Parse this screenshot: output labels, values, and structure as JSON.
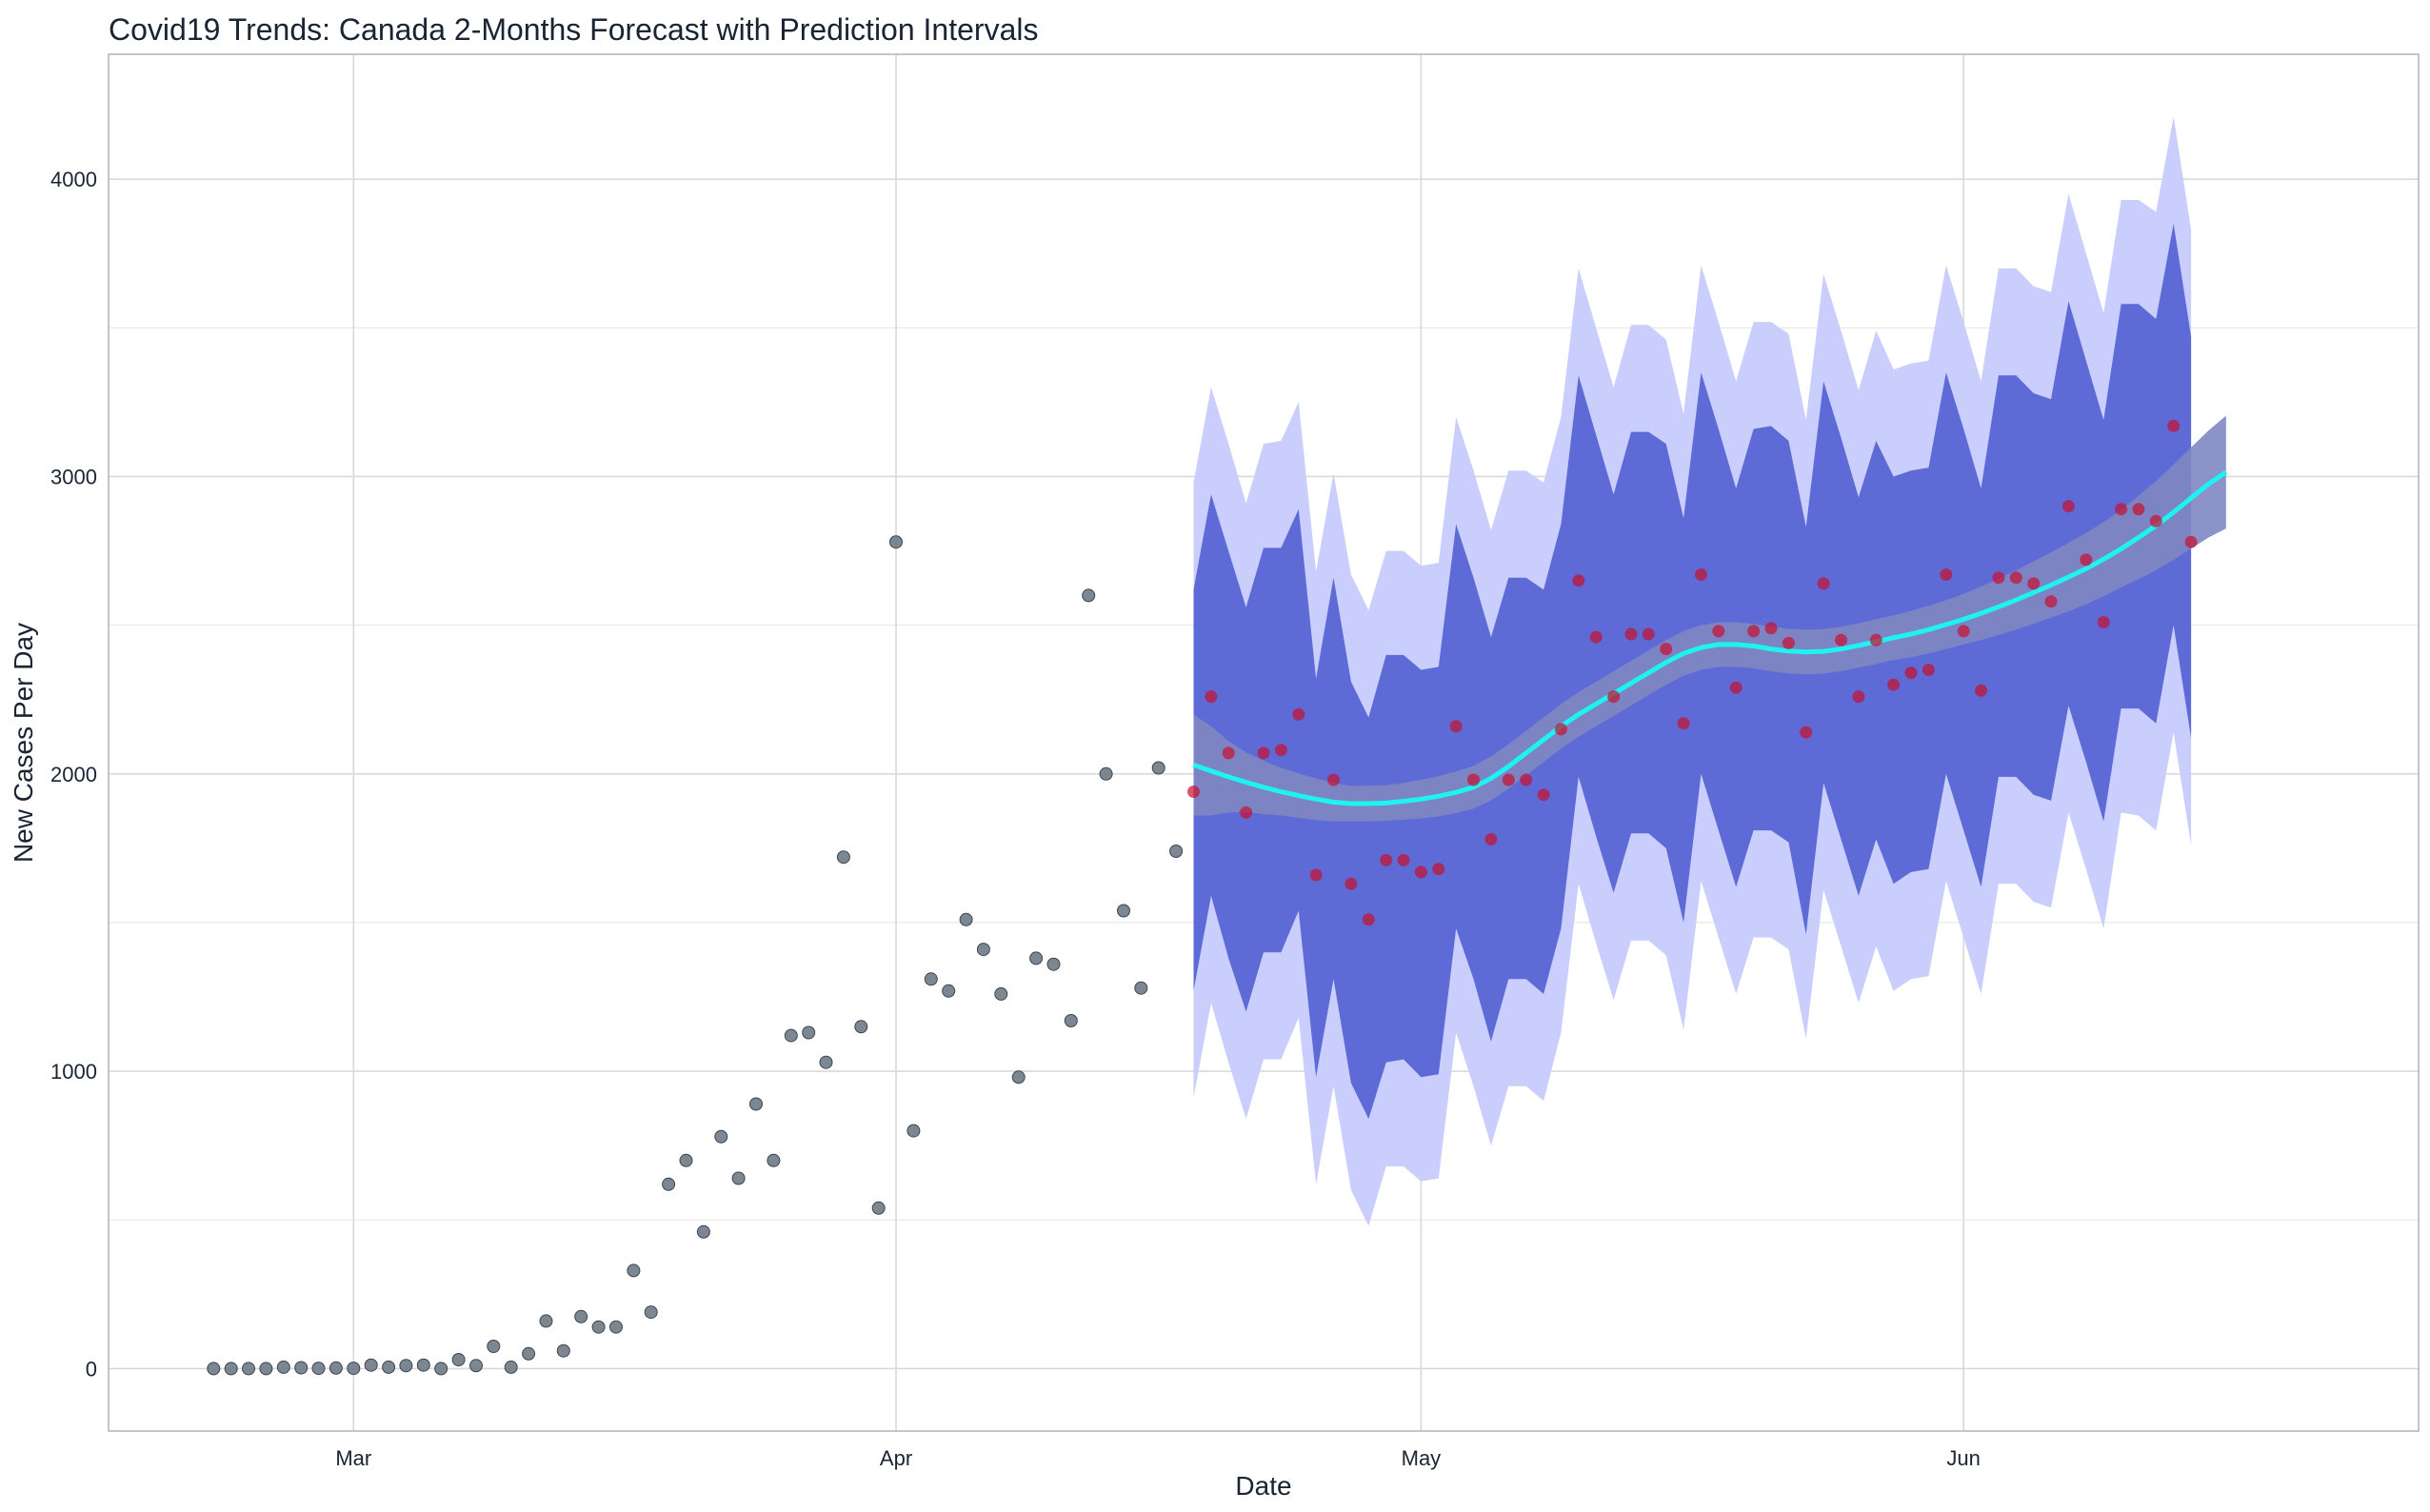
{
  "chart_data": {
    "type": "scatter",
    "title": "Covid19 Trends: Canada 2-Months Forecast with Prediction Intervals",
    "xlabel": "Date",
    "ylabel": "New Cases Per Day",
    "x_start_date": "2020-02-22",
    "xlim": [
      "2020-02-16",
      "2020-06-27"
    ],
    "ylim": [
      -210,
      4420
    ],
    "x_ticks": [
      {
        "date": "2020-03-01",
        "label": "Mar"
      },
      {
        "date": "2020-04-01",
        "label": "Apr"
      },
      {
        "date": "2020-05-01",
        "label": "May"
      },
      {
        "date": "2020-06-01",
        "label": "Jun"
      }
    ],
    "y_ticks": [
      0,
      1000,
      2000,
      3000,
      4000
    ],
    "grid": true,
    "colors": {
      "observed": "#6f7a85",
      "forecast_points": "#c8102e",
      "pi_80": "#5e6bd6",
      "pi_95": "#c9cefc",
      "trend": "#1ff2f2",
      "trend_ribbon": "#7f87c2"
    },
    "observed": [
      0,
      0,
      0,
      0,
      5,
      3,
      1,
      2,
      1,
      12,
      5,
      10,
      12,
      0,
      30,
      10,
      75,
      5,
      50,
      160,
      60,
      175,
      140,
      140,
      330,
      190,
      620,
      700,
      460,
      780,
      640,
      890,
      700,
      1120,
      1130,
      1030,
      1720,
      1150,
      540,
      2780,
      800,
      1310,
      1270,
      1510,
      1410,
      1260,
      980,
      1380,
      1360,
      1170,
      2600,
      2000,
      1540,
      1280,
      2020,
      1740
    ],
    "forecast": {
      "start_date": "2020-04-18",
      "points": [
        1940,
        2260,
        2070,
        1870,
        2070,
        2080,
        2200,
        1660,
        1980,
        1630,
        1510,
        1710,
        1710,
        1670,
        1680,
        2160,
        1980,
        1780,
        1980,
        1980,
        1930,
        2150,
        2650,
        2460,
        2260,
        2470,
        2470,
        2420,
        2170,
        2670,
        2480,
        2290,
        2480,
        2490,
        2440,
        2140,
        2640,
        2450,
        2260,
        2450,
        2300,
        2340,
        2350,
        2670,
        2480,
        2280,
        2660,
        2660,
        2640,
        2580,
        2900,
        2720,
        2510,
        2890,
        2890,
        2850,
        3170,
        2780
      ],
      "trend": [
        2030,
        2010,
        1990,
        1972,
        1955,
        1940,
        1927,
        1915,
        1905,
        1900,
        1900,
        1902,
        1908,
        1915,
        1925,
        1938,
        1955,
        1985,
        2025,
        2070,
        2115,
        2160,
        2200,
        2235,
        2270,
        2305,
        2340,
        2375,
        2405,
        2425,
        2435,
        2435,
        2430,
        2420,
        2413,
        2410,
        2412,
        2420,
        2432,
        2445,
        2458,
        2470,
        2485,
        2502,
        2520,
        2540,
        2562,
        2585,
        2610,
        2635,
        2662,
        2690,
        2722,
        2757,
        2795,
        2835,
        2880,
        2928,
        2975,
        3015
      ],
      "trend_ribbon_halfwidth": [
        170,
        150,
        120,
        100,
        90,
        80,
        75,
        70,
        65,
        60,
        60,
        60,
        62,
        65,
        68,
        70,
        72,
        74,
        75,
        75,
        75,
        75,
        75,
        75,
        75,
        75,
        75,
        75,
        75,
        75,
        75,
        75,
        75,
        75,
        75,
        75,
        75,
        75,
        75,
        75,
        75,
        78,
        80,
        82,
        85,
        90,
        95,
        100,
        105,
        110,
        115,
        120,
        125,
        130,
        140,
        150,
        160,
        170,
        180,
        190
      ],
      "pi_80_upper": [
        2620,
        2940,
        2750,
        2560,
        2760,
        2760,
        2890,
        2320,
        2660,
        2310,
        2190,
        2400,
        2400,
        2350,
        2360,
        2840,
        2660,
        2460,
        2660,
        2660,
        2620,
        2840,
        3340,
        3140,
        2940,
        3150,
        3150,
        3110,
        2860,
        3350,
        3160,
        2960,
        3160,
        3170,
        3120,
        2830,
        3320,
        3130,
        2930,
        3120,
        3000,
        3020,
        3030,
        3350,
        3160,
        2960,
        3340,
        3340,
        3280,
        3260,
        3590,
        3390,
        3190,
        3580,
        3580,
        3530,
        3850,
        3470
      ],
      "pi_80_lower": [
        1270,
        1590,
        1380,
        1200,
        1400,
        1400,
        1540,
        980,
        1310,
        960,
        840,
        1030,
        1040,
        980,
        990,
        1480,
        1310,
        1100,
        1310,
        1310,
        1260,
        1480,
        1990,
        1790,
        1600,
        1800,
        1800,
        1750,
        1500,
        2000,
        1810,
        1620,
        1810,
        1810,
        1770,
        1460,
        1970,
        1780,
        1590,
        1780,
        1630,
        1670,
        1680,
        2000,
        1810,
        1620,
        1990,
        1990,
        1930,
        1910,
        2230,
        2040,
        1840,
        2220,
        2220,
        2170,
        2500,
        2120
      ],
      "pi_95_upper": [
        2980,
        3300,
        3110,
        2910,
        3110,
        3120,
        3250,
        2680,
        3010,
        2670,
        2550,
        2750,
        2750,
        2700,
        2710,
        3200,
        3020,
        2820,
        3020,
        3020,
        2980,
        3200,
        3700,
        3500,
        3300,
        3510,
        3510,
        3460,
        3210,
        3710,
        3520,
        3320,
        3520,
        3520,
        3480,
        3190,
        3680,
        3490,
        3290,
        3490,
        3360,
        3380,
        3390,
        3710,
        3520,
        3320,
        3700,
        3700,
        3640,
        3620,
        3950,
        3750,
        3550,
        3930,
        3930,
        3890,
        4210,
        3830
      ],
      "pi_95_lower": [
        910,
        1230,
        1030,
        840,
        1040,
        1040,
        1180,
        620,
        950,
        600,
        480,
        680,
        680,
        630,
        640,
        1130,
        950,
        750,
        950,
        950,
        900,
        1130,
        1630,
        1430,
        1240,
        1440,
        1440,
        1390,
        1140,
        1640,
        1450,
        1260,
        1450,
        1450,
        1410,
        1110,
        1610,
        1420,
        1230,
        1420,
        1270,
        1310,
        1320,
        1640,
        1450,
        1260,
        1630,
        1630,
        1570,
        1550,
        1870,
        1680,
        1480,
        1870,
        1860,
        1810,
        2140,
        1760
      ]
    }
  }
}
